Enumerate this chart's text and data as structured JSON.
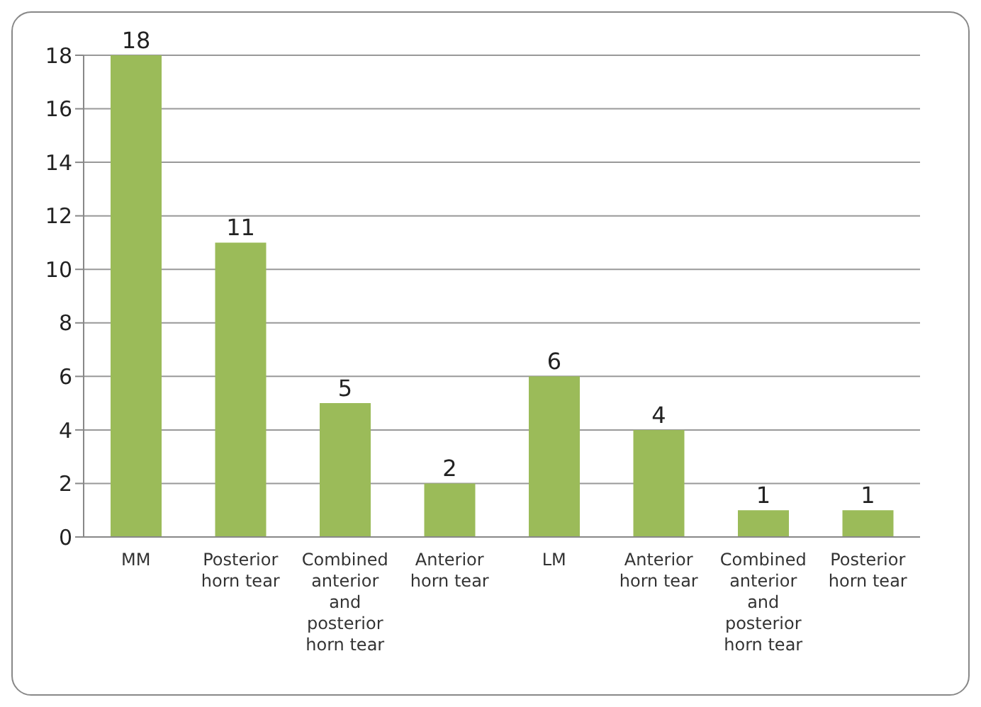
{
  "chart_data": {
    "type": "bar",
    "categories": [
      "MM",
      "Posterior horn tear",
      "Combined anterior and posterior horn tear",
      "Anterior horn tear",
      "LM",
      "Anterior horn tear",
      "Combined anterior and posterior horn tear",
      "Posterior horn tear"
    ],
    "values": [
      18,
      11,
      5,
      2,
      6,
      4,
      1,
      1
    ],
    "color": "#9bbb59",
    "ylim": [
      0,
      18
    ],
    "yticks": [
      0,
      2,
      4,
      6,
      8,
      10,
      12,
      14,
      16,
      18
    ],
    "grid": "y",
    "data_labels": true
  }
}
